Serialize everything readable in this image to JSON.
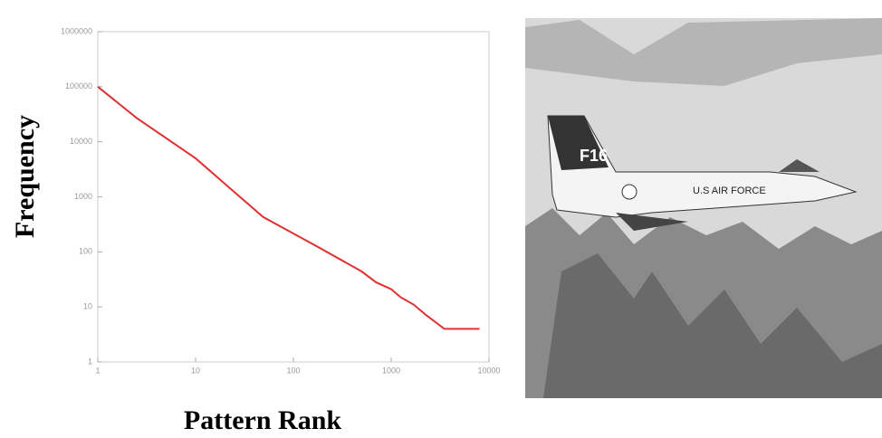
{
  "chart_data": {
    "type": "line",
    "x_label": "Pattern Rank",
    "y_label": "Frequency",
    "x": [
      1,
      2.5,
      10,
      49,
      174,
      500,
      700,
      1000,
      1250,
      1700,
      2300,
      3500,
      8000
    ],
    "series": [
      {
        "color": "#e03030",
        "values": [
          100000,
          27000,
          5000,
          430,
          126,
          44,
          28,
          21,
          15,
          11,
          7,
          4,
          4
        ]
      }
    ],
    "xlim": [
      1,
      10000
    ],
    "ylim": [
      1,
      1000000
    ],
    "log_x": true,
    "log_y": true,
    "xticks": [
      1,
      10,
      100,
      1000,
      10000
    ],
    "yticks": [
      1,
      10,
      100,
      1000,
      10000,
      100000,
      1000000
    ],
    "grid": false
  },
  "photo": {
    "tail": "F16",
    "fuselage": "U.S AIR FORCE"
  }
}
